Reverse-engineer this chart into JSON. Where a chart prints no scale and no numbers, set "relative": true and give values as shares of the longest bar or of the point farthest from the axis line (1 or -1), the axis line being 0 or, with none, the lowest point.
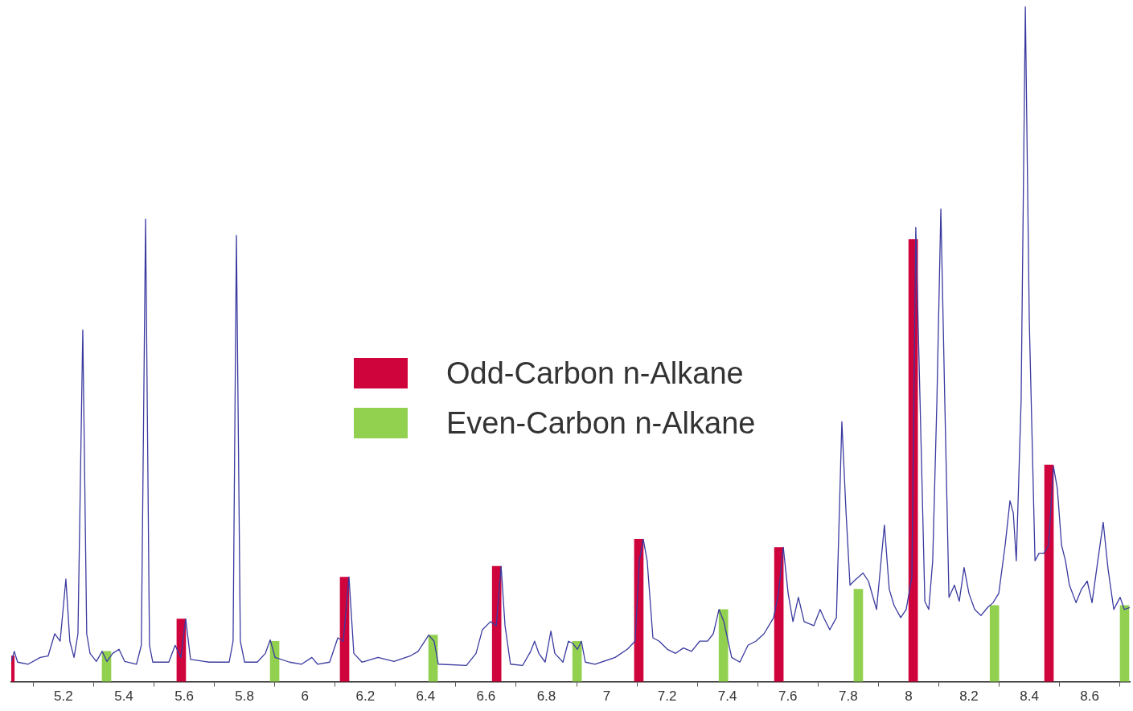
{
  "chart_data": {
    "type": "line",
    "relative": true,
    "grid": false,
    "marker": "none",
    "legend": "center",
    "xlim": [
      5.027,
      8.733
    ],
    "xticks": [
      5.2,
      5.4,
      5.6,
      5.8,
      6,
      6.2,
      6.4,
      6.6,
      6.8,
      7,
      7.2,
      7.4,
      7.6,
      7.8,
      8,
      8.2,
      8.4,
      8.6
    ],
    "series": [
      {
        "color": "#3a3aa0",
        "x": [
          5.027,
          5.037,
          5.048,
          5.083,
          5.123,
          5.149,
          5.171,
          5.189,
          5.208,
          5.221,
          5.235,
          5.248,
          5.264,
          5.277,
          5.288,
          5.309,
          5.328,
          5.344,
          5.363,
          5.384,
          5.403,
          5.442,
          5.458,
          5.472,
          5.485,
          5.496,
          5.549,
          5.57,
          5.589,
          5.605,
          5.621,
          5.682,
          5.749,
          5.762,
          5.773,
          5.786,
          5.8,
          5.842,
          5.869,
          5.885,
          5.901,
          5.949,
          5.989,
          6.023,
          6.042,
          6.082,
          6.109,
          6.127,
          6.146,
          6.162,
          6.189,
          6.242,
          6.295,
          6.348,
          6.375,
          6.41,
          6.428,
          6.442,
          6.535,
          6.567,
          6.588,
          6.615,
          6.634,
          6.65,
          6.663,
          6.681,
          6.721,
          6.748,
          6.761,
          6.775,
          6.796,
          6.815,
          6.828,
          6.855,
          6.873,
          6.887,
          6.903,
          6.916,
          6.929,
          6.961,
          7.028,
          7.068,
          7.094,
          7.108,
          7.121,
          7.134,
          7.153,
          7.174,
          7.201,
          7.228,
          7.254,
          7.281,
          7.308,
          7.334,
          7.353,
          7.372,
          7.388,
          7.414,
          7.441,
          7.468,
          7.494,
          7.521,
          7.553,
          7.569,
          7.585,
          7.601,
          7.617,
          7.635,
          7.654,
          7.686,
          7.707,
          7.721,
          7.739,
          7.761,
          7.779,
          7.793,
          7.806,
          7.819,
          7.849,
          7.867,
          7.894,
          7.92,
          7.936,
          7.952,
          7.974,
          7.992,
          8.011,
          8.024,
          8.038,
          8.054,
          8.067,
          8.08,
          8.094,
          8.107,
          8.12,
          8.134,
          8.152,
          8.168,
          8.184,
          8.2,
          8.219,
          8.24,
          8.262,
          8.28,
          8.299,
          8.32,
          8.336,
          8.347,
          8.357,
          8.373,
          8.387,
          8.4,
          8.419,
          8.432,
          8.448,
          8.464,
          8.48,
          8.493,
          8.507,
          8.52,
          8.533,
          8.555,
          8.573,
          8.592,
          8.608,
          8.627,
          8.645,
          8.661,
          8.68,
          8.701,
          8.715,
          8.733
        ],
        "values": [
          0.03,
          0.045,
          0.029,
          0.026,
          0.036,
          0.038,
          0.071,
          0.06,
          0.152,
          0.06,
          0.036,
          0.071,
          0.521,
          0.071,
          0.042,
          0.03,
          0.045,
          0.03,
          0.042,
          0.048,
          0.03,
          0.026,
          0.054,
          0.685,
          0.054,
          0.029,
          0.029,
          0.054,
          0.036,
          0.093,
          0.033,
          0.029,
          0.029,
          0.06,
          0.661,
          0.06,
          0.029,
          0.029,
          0.042,
          0.062,
          0.036,
          0.029,
          0.026,
          0.036,
          0.026,
          0.029,
          0.065,
          0.06,
          0.155,
          0.042,
          0.029,
          0.036,
          0.03,
          0.038,
          0.045,
          0.069,
          0.06,
          0.026,
          0.024,
          0.042,
          0.077,
          0.089,
          0.083,
          0.171,
          0.083,
          0.026,
          0.024,
          0.045,
          0.06,
          0.042,
          0.029,
          0.075,
          0.042,
          0.029,
          0.06,
          0.057,
          0.048,
          0.06,
          0.029,
          0.026,
          0.036,
          0.048,
          0.06,
          0.179,
          0.211,
          0.179,
          0.065,
          0.06,
          0.048,
          0.042,
          0.05,
          0.045,
          0.06,
          0.06,
          0.071,
          0.107,
          0.089,
          0.036,
          0.029,
          0.054,
          0.06,
          0.071,
          0.095,
          0.131,
          0.199,
          0.131,
          0.089,
          0.125,
          0.089,
          0.083,
          0.107,
          0.093,
          0.077,
          0.095,
          0.385,
          0.25,
          0.143,
          0.149,
          0.161,
          0.149,
          0.107,
          0.232,
          0.137,
          0.113,
          0.095,
          0.107,
          0.155,
          0.673,
          0.417,
          0.119,
          0.107,
          0.179,
          0.417,
          0.7,
          0.417,
          0.125,
          0.143,
          0.119,
          0.169,
          0.131,
          0.107,
          0.098,
          0.11,
          0.117,
          0.131,
          0.202,
          0.268,
          0.25,
          0.179,
          0.417,
          1.0,
          0.536,
          0.179,
          0.19,
          0.19,
          0.202,
          0.319,
          0.286,
          0.202,
          0.179,
          0.143,
          0.117,
          0.137,
          0.149,
          0.117,
          0.179,
          0.236,
          0.167,
          0.107,
          0.125,
          0.107,
          0.11
        ]
      },
      {
        "type": "bar",
        "name": "Odd-Carbon n-Alkane",
        "color": "#d0043c",
        "x": [
          5.037,
          5.605,
          6.146,
          6.65,
          7.121,
          7.585,
          8.03,
          8.48
        ],
        "values": [
          0.038,
          0.093,
          0.155,
          0.171,
          0.211,
          0.199,
          0.655,
          0.321
        ]
      },
      {
        "type": "bar",
        "name": "Even-Carbon n-Alkane",
        "color": "#92d050",
        "x": [
          5.328,
          5.885,
          6.41,
          6.887,
          7.372,
          7.819,
          8.27,
          8.701
        ],
        "values": [
          0.045,
          0.06,
          0.069,
          0.06,
          0.107,
          0.137,
          0.113,
          0.113
        ]
      }
    ]
  }
}
